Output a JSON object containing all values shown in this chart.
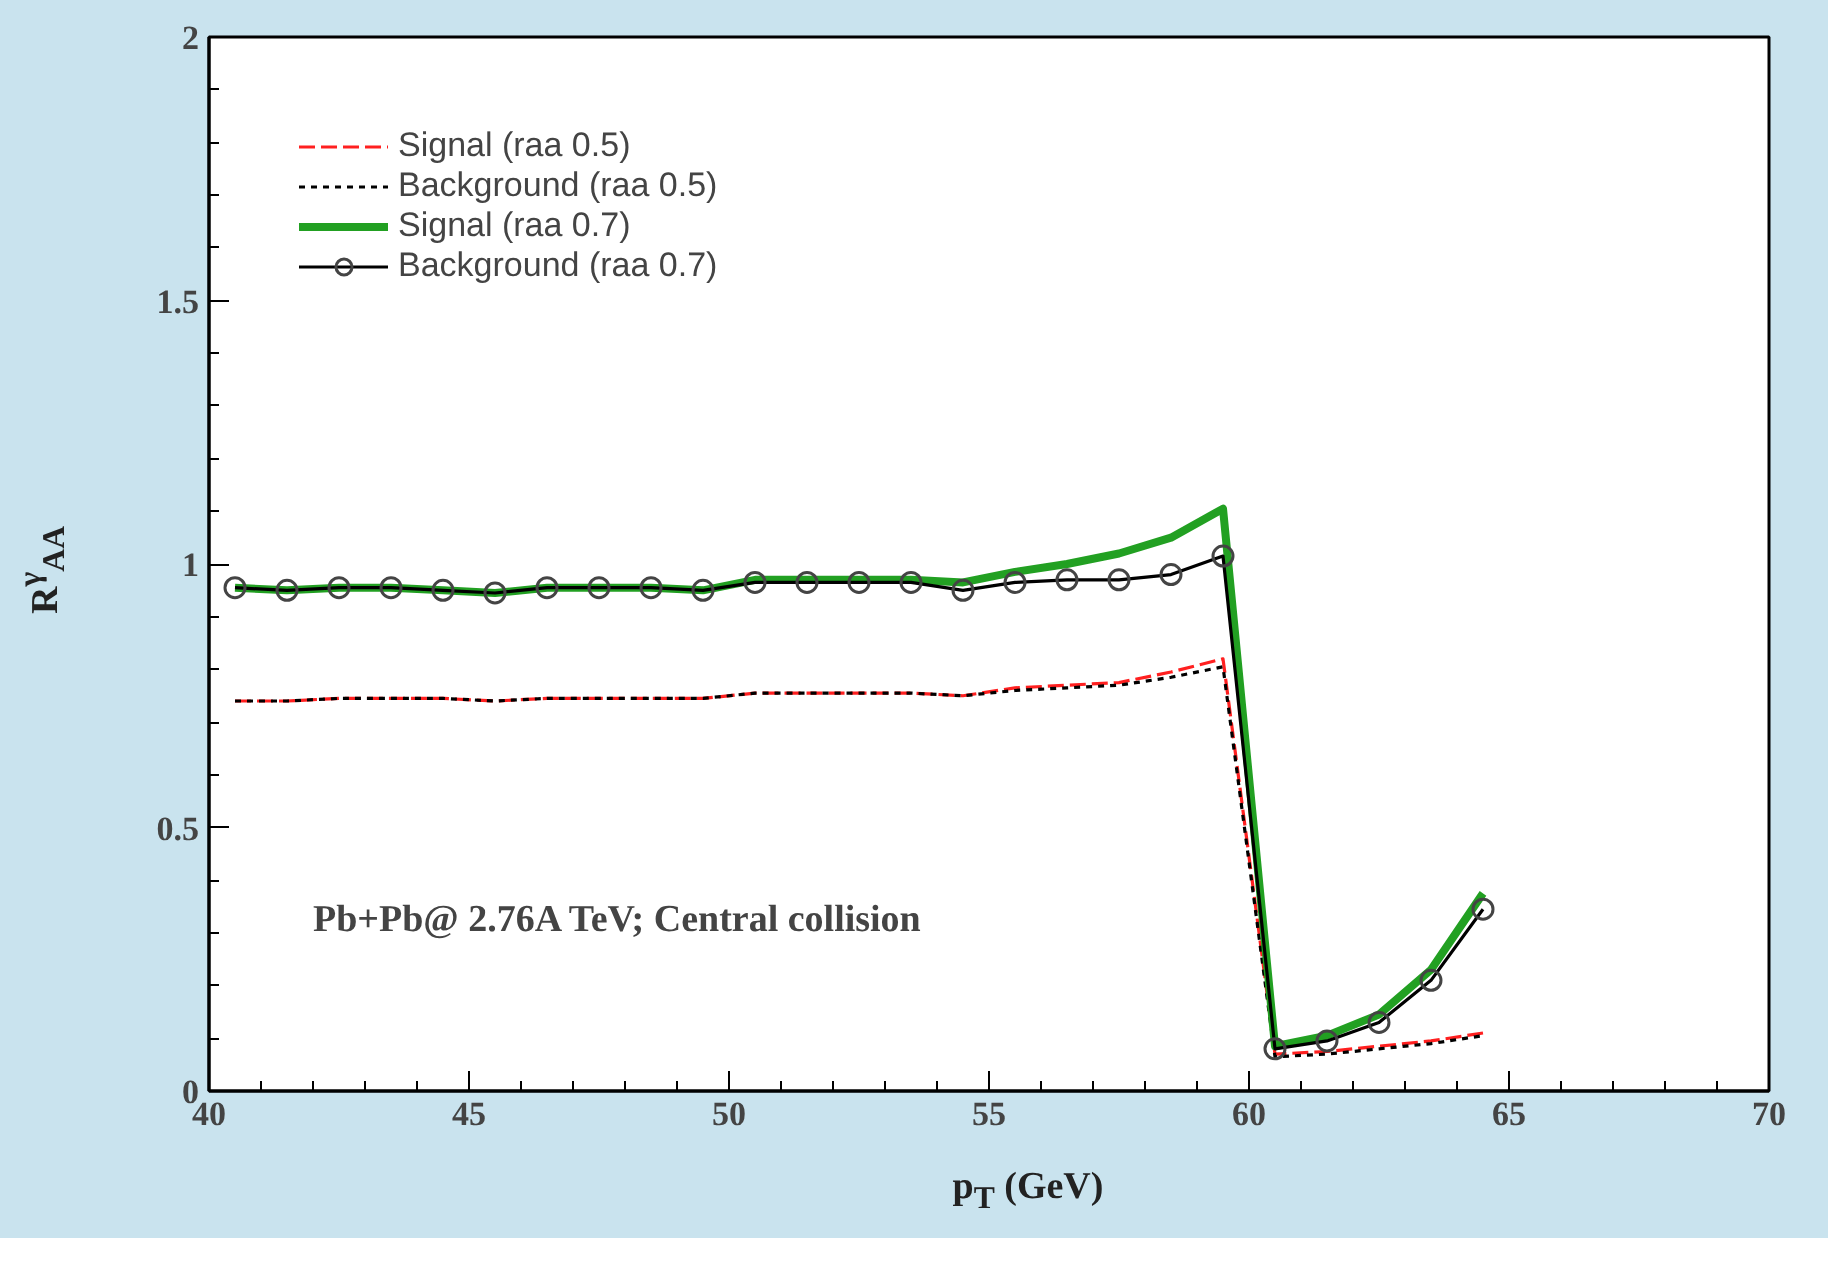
{
  "chart_data": {
    "type": "line",
    "xlabel": "p$_{T}$ (GeV)",
    "ylabel": "R$^{γ}$$_{AA}$",
    "x": [
      40.5,
      41.5,
      42.5,
      43.5,
      44.5,
      45.5,
      46.5,
      47.5,
      48.5,
      49.5,
      50.5,
      51.5,
      52.5,
      53.5,
      54.5,
      55.5,
      56.5,
      57.5,
      58.5,
      59.5,
      60.5,
      61.5,
      62.5,
      63.5,
      64.5
    ],
    "xlim": [
      40,
      70
    ],
    "xticks": [
      40,
      45,
      50,
      55,
      60,
      65,
      70
    ],
    "ylim": [
      0,
      2
    ],
    "yticks": [
      0,
      0.5,
      1,
      1.5,
      2
    ],
    "legend": "top left",
    "grid": false,
    "annotations": [
      "Pb+Pb@ 2.76A TeV; Central collision"
    ],
    "series": [
      {
        "name": "Signal (raa 0.5)",
        "color": "#ff2020",
        "line_style": "dashed",
        "marker": "none",
        "values": [
          0.74,
          0.74,
          0.745,
          0.745,
          0.745,
          0.74,
          0.745,
          0.745,
          0.745,
          0.745,
          0.755,
          0.755,
          0.755,
          0.755,
          0.75,
          0.765,
          0.77,
          0.775,
          0.795,
          0.82,
          0.07,
          0.075,
          0.085,
          0.095,
          0.11
        ]
      },
      {
        "name": "Background (raa 0.5)",
        "color": "#000000",
        "line_style": "dotted",
        "marker": "none",
        "values": [
          0.74,
          0.74,
          0.745,
          0.745,
          0.745,
          0.74,
          0.745,
          0.745,
          0.745,
          0.745,
          0.755,
          0.755,
          0.755,
          0.755,
          0.75,
          0.76,
          0.765,
          0.77,
          0.785,
          0.805,
          0.065,
          0.07,
          0.08,
          0.09,
          0.105
        ]
      },
      {
        "name": "Signal (raa 0.7)",
        "color": "#22a022",
        "line_style": "solid",
        "marker": "none",
        "values": [
          0.955,
          0.95,
          0.955,
          0.955,
          0.95,
          0.945,
          0.955,
          0.955,
          0.955,
          0.95,
          0.97,
          0.97,
          0.97,
          0.97,
          0.965,
          0.985,
          1.0,
          1.02,
          1.05,
          1.105,
          0.085,
          0.105,
          0.145,
          0.23,
          0.375
        ]
      },
      {
        "name": "Background (raa 0.7)",
        "color": "#000000",
        "line_style": "solid",
        "marker": "circle",
        "values": [
          0.955,
          0.95,
          0.955,
          0.955,
          0.95,
          0.945,
          0.955,
          0.955,
          0.955,
          0.95,
          0.965,
          0.965,
          0.965,
          0.965,
          0.95,
          0.965,
          0.97,
          0.97,
          0.98,
          1.015,
          0.08,
          0.095,
          0.13,
          0.21,
          0.345
        ]
      }
    ]
  }
}
